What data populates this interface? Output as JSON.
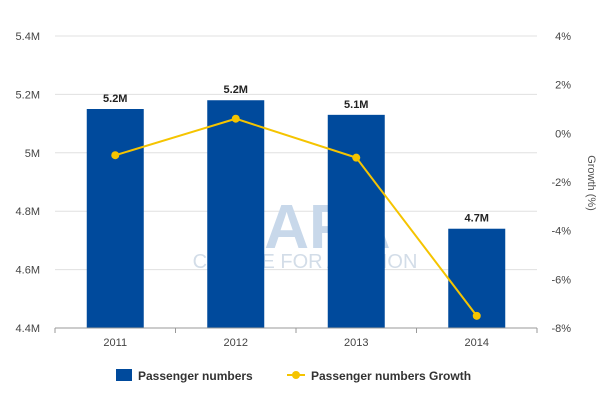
{
  "watermark": {
    "logo": "CAPA",
    "tagline": "CENTRE FOR AVIATION"
  },
  "chart_data": {
    "type": "bar",
    "categories": [
      "2011",
      "2012",
      "2013",
      "2014"
    ],
    "series": [
      {
        "name": "Passenger numbers",
        "kind": "bar",
        "axis": "left",
        "values": [
          5.15,
          5.18,
          5.13,
          4.74
        ],
        "labels": [
          "5.2M",
          "5.2M",
          "5.1M",
          "4.7M"
        ],
        "color": "#004a9c"
      },
      {
        "name": "Passenger numbers Growth",
        "kind": "line",
        "axis": "right",
        "values": [
          -0.9,
          0.6,
          -1.0,
          -7.5
        ],
        "color": "#f5c400"
      }
    ],
    "y_left": {
      "min": 4.4,
      "max": 5.4,
      "ticks": [
        {
          "v": 4.4,
          "label": "4.4M"
        },
        {
          "v": 4.6,
          "label": "4.6M"
        },
        {
          "v": 4.8,
          "label": "4.8M"
        },
        {
          "v": 5.0,
          "label": "5M"
        },
        {
          "v": 5.2,
          "label": "5.2M"
        },
        {
          "v": 5.4,
          "label": "5.4M"
        }
      ]
    },
    "y_right": {
      "min": -8,
      "max": 4,
      "title": "Growth (%)",
      "ticks": [
        {
          "v": -8,
          "label": "-8%"
        },
        {
          "v": -6,
          "label": "-6%"
        },
        {
          "v": -4,
          "label": "-4%"
        },
        {
          "v": -2,
          "label": "-2%"
        },
        {
          "v": 0,
          "label": "0%"
        },
        {
          "v": 2,
          "label": "2%"
        },
        {
          "v": 4,
          "label": "4%"
        }
      ]
    },
    "grid": true,
    "legend_position": "bottom"
  }
}
